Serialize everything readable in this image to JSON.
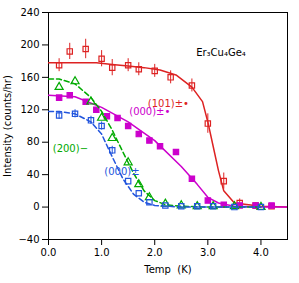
{
  "chart_data": {
    "type": "line",
    "xlabel": "Temp  (K)",
    "ylabel": "Intensity (counts/hr)",
    "xlim": [
      0,
      4.5
    ],
    "ylim": [
      -40,
      240
    ],
    "xticks": [
      0,
      1,
      2,
      3,
      4
    ],
    "yticks": [
      -40,
      0,
      40,
      80,
      120,
      160,
      200,
      240
    ],
    "grid": false,
    "series": [
      {
        "color": "#dd2222",
        "marker": "square-open",
        "line_style": "solid",
        "x": [
          0.2,
          0.4,
          0.7,
          1.0,
          1.2,
          1.5,
          1.7,
          2.0,
          2.3,
          2.7,
          3.0,
          3.3,
          3.6,
          3.9,
          4.2
        ],
        "values": [
          175,
          192,
          195,
          183,
          172,
          175,
          170,
          168,
          160,
          150,
          103,
          32,
          5,
          2,
          1
        ],
        "yerr": [
          8,
          10,
          12,
          10,
          10,
          8,
          8,
          8,
          8,
          8,
          12,
          10,
          5,
          3,
          2
        ],
        "fit": {
          "x": [
            0.0,
            0.3,
            0.6,
            0.9,
            1.2,
            1.5,
            1.8,
            2.1,
            2.4,
            2.7,
            2.9,
            3.0,
            3.1,
            3.2,
            3.3,
            3.5,
            4.0,
            4.5
          ],
          "values": [
            178,
            178,
            178,
            178,
            176,
            174,
            172,
            169,
            163,
            148,
            130,
            105,
            75,
            45,
            20,
            5,
            1,
            0
          ]
        }
      },
      {
        "color": "#cc00cc",
        "marker": "square",
        "line_style": "solid",
        "x": [
          0.2,
          0.4,
          0.7,
          0.9,
          1.1,
          1.3,
          1.5,
          1.7,
          1.9,
          2.1,
          2.4,
          2.7,
          3.0,
          3.3,
          3.6,
          3.9,
          4.2
        ],
        "values": [
          135,
          138,
          130,
          120,
          112,
          110,
          100,
          90,
          82,
          75,
          68,
          35,
          8,
          3,
          2,
          2,
          2
        ],
        "yerr": [
          0,
          0,
          0,
          0,
          0,
          0,
          0,
          0,
          0,
          0,
          0,
          0,
          0,
          0,
          0,
          0,
          0
        ],
        "fit": {
          "x": [
            0.0,
            0.5,
            1.0,
            1.5,
            2.0,
            2.5,
            2.8,
            3.0,
            3.2,
            3.5,
            4.0,
            4.5
          ],
          "values": [
            138,
            136,
            123,
            105,
            82,
            50,
            28,
            12,
            5,
            1,
            0,
            0
          ]
        }
      },
      {
        "color": "#00aa00",
        "marker": "triangle-open",
        "line_style": "dashed",
        "x": [
          0.2,
          0.5,
          0.8,
          1.0,
          1.2,
          1.5,
          1.7,
          1.9,
          2.2,
          2.5,
          2.8,
          3.1,
          3.5,
          4.0
        ],
        "values": [
          148,
          155,
          130,
          110,
          85,
          55,
          28,
          12,
          4,
          2,
          1,
          1,
          1,
          0
        ],
        "yerr": [
          0,
          0,
          0,
          0,
          0,
          0,
          0,
          0,
          0,
          0,
          0,
          0,
          0,
          0
        ],
        "fit": {
          "x": [
            0.0,
            0.2,
            0.5,
            0.8,
            1.0,
            1.2,
            1.4,
            1.6,
            1.8,
            2.0,
            2.2,
            2.5,
            3.0,
            4.0
          ],
          "values": [
            158,
            158,
            152,
            135,
            118,
            95,
            68,
            42,
            20,
            8,
            3,
            1,
            0,
            0
          ]
        }
      },
      {
        "color": "#2255dd",
        "marker": "square-open",
        "line_style": "dashed",
        "x": [
          0.2,
          0.5,
          0.8,
          1.0,
          1.2,
          1.5,
          1.7,
          1.9,
          2.2,
          2.5,
          2.8,
          3.1,
          3.5,
          4.0
        ],
        "values": [
          113,
          115,
          107,
          100,
          70,
          32,
          17,
          6,
          2,
          1,
          1,
          1,
          0,
          0
        ],
        "yerr": [
          5,
          5,
          5,
          5,
          5,
          0,
          0,
          0,
          0,
          0,
          0,
          0,
          0,
          0
        ],
        "fit": {
          "x": [
            0.0,
            0.2,
            0.5,
            0.8,
            1.0,
            1.2,
            1.4,
            1.6,
            1.8,
            2.0,
            2.5,
            3.0,
            4.0
          ],
          "values": [
            118,
            118,
            115,
            105,
            90,
            62,
            35,
            16,
            6,
            2,
            0,
            0,
            0
          ]
        }
      }
    ],
    "annotations": [
      {
        "text": "(101)±•",
        "x": 1.87,
        "y": 128,
        "color": "#dd2222"
      },
      {
        "text": "(000)±•",
        "x": 1.52,
        "y": 118,
        "color": "#cc00cc"
      },
      {
        "text": "(200)−",
        "x": 0.08,
        "y": 72,
        "color": "#00aa00"
      },
      {
        "text": "(000)±",
        "x": 1.05,
        "y": 44,
        "color": "#2255dd"
      },
      {
        "text": "Er₃Cu₄Ge₄",
        "x": 2.78,
        "y": 190,
        "color": "#000000"
      }
    ]
  }
}
